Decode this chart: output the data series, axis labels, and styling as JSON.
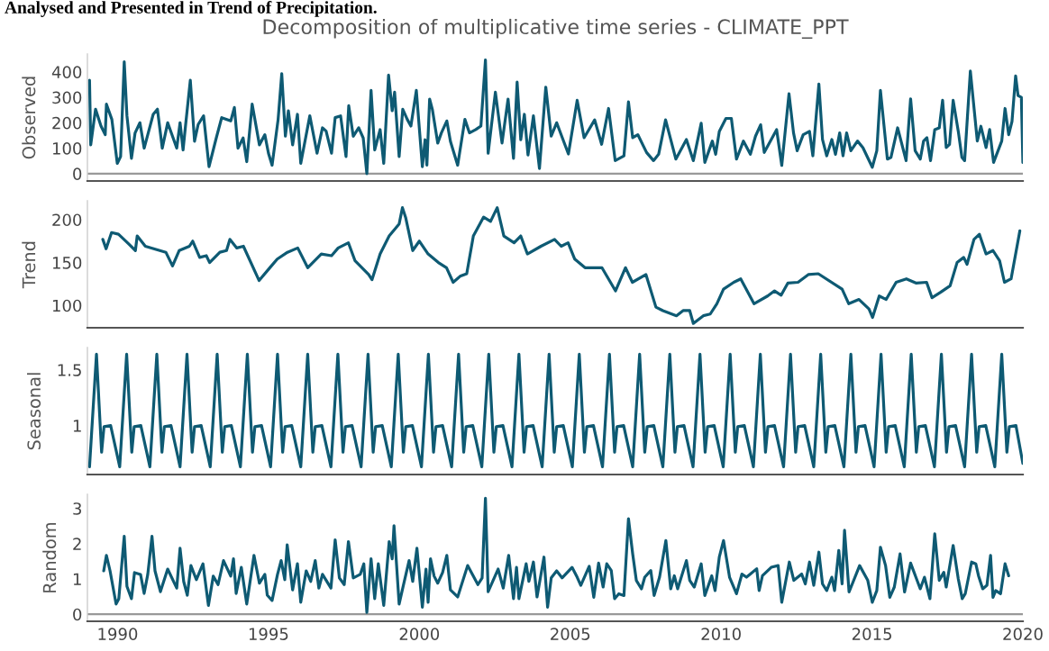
{
  "chart_data": [
    {
      "type": "line",
      "title": "Decomposition of multiplicative time series - CLIMATE_PPT",
      "annotations": [
        "Analysed and Presented in Trend of Precipitation."
      ],
      "ylabel": "Observed",
      "xlim": [
        1989,
        2020
      ],
      "xticks": [
        1990,
        1995,
        2000,
        2005,
        2010,
        2015,
        2020
      ],
      "ylim": [
        -29,
        470
      ],
      "yticks": [
        0,
        100,
        200,
        300,
        400
      ],
      "tick_labels": "y",
      "ref_lines": [
        {
          "axis": "y",
          "value": 0,
          "color": "#999999"
        }
      ],
      "series": [
        {
          "color": "#0e5a73",
          "x": [
            1989.07,
            1989.11,
            1989.27,
            1989.45,
            1989.59,
            1989.63,
            1989.81,
            1989.99,
            1990.1,
            1990.22,
            1990.31,
            1990.46,
            1990.58,
            1990.74,
            1990.88,
            1991.0,
            1991.18,
            1991.32,
            1991.48,
            1991.66,
            1991.96,
            1992.07,
            1992.17,
            1992.25,
            1992.41,
            1992.55,
            1992.67,
            1992.85,
            1993.03,
            1993.27,
            1993.45,
            1993.75,
            1993.87,
            1993.99,
            1994.16,
            1994.28,
            1994.46,
            1994.7,
            1994.88,
            1995.0,
            1995.12,
            1995.32,
            1995.44,
            1995.56,
            1995.66,
            1995.8,
            1995.96,
            1996.07,
            1996.37,
            1996.61,
            1996.79,
            1996.91,
            1997.09,
            1997.21,
            1997.39,
            1997.57,
            1997.66,
            1997.81,
            1997.99,
            1998.14,
            1998.26,
            1998.4,
            1998.52,
            1998.7,
            1998.82,
            1998.98,
            1999.1,
            1999.18,
            1999.33,
            1999.45,
            1999.6,
            1999.72,
            1999.9,
            2000.1,
            2000.19,
            2000.25,
            2000.34,
            2000.43,
            2000.61,
            2000.73,
            2000.91,
            2001.03,
            2001.27,
            2001.51,
            2001.66,
            2001.87,
            2002.04,
            2002.19,
            2002.28,
            2002.52,
            2002.74,
            2002.94,
            2003.12,
            2003.24,
            2003.36,
            2003.48,
            2003.6,
            2003.78,
            2003.98,
            2004.19,
            2004.37,
            2004.55,
            2004.94,
            2005.23,
            2005.46,
            2005.81,
            2006.04,
            2006.27,
            2006.49,
            2006.78,
            2006.93,
            2007.07,
            2007.24,
            2007.53,
            2007.76,
            2007.93,
            2008.16,
            2008.5,
            2008.85,
            2009.08,
            2009.34,
            2009.46,
            2009.71,
            2009.82,
            2009.94,
            2010.16,
            2010.34,
            2010.51,
            2010.74,
            2010.97,
            2011.14,
            2011.31,
            2011.43,
            2011.84,
            2012.01,
            2012.25,
            2012.4,
            2012.52,
            2012.72,
            2012.93,
            2013.04,
            2013.24,
            2013.36,
            2013.5,
            2013.67,
            2013.79,
            2013.93,
            2014.04,
            2014.16,
            2014.3,
            2014.52,
            2014.7,
            2015.01,
            2015.16,
            2015.28,
            2015.51,
            2015.63,
            2015.85,
            2016.13,
            2016.28,
            2016.43,
            2016.6,
            2016.71,
            2016.82,
            2016.94,
            2017.08,
            2017.23,
            2017.34,
            2017.46,
            2017.57,
            2017.69,
            2017.86,
            2017.98,
            2018.07,
            2018.26,
            2018.49,
            2018.61,
            2018.78,
            2018.9,
            2019.03,
            2019.3,
            2019.41,
            2019.53,
            2019.64,
            2019.76,
            2019.84,
            2019.95,
            2020.0
          ],
          "values": [
            367,
            113,
            253,
            187,
            153,
            273,
            213,
            40,
            67,
            440,
            227,
            60,
            160,
            200,
            100,
            153,
            233,
            253,
            100,
            200,
            100,
            200,
            93,
            187,
            367,
            127,
            193,
            227,
            27,
            140,
            220,
            207,
            260,
            100,
            140,
            47,
            273,
            113,
            153,
            80,
            33,
            213,
            393,
            147,
            247,
            113,
            233,
            40,
            227,
            80,
            180,
            167,
            80,
            220,
            227,
            67,
            267,
            147,
            180,
            140,
            0,
            327,
            93,
            173,
            40,
            387,
            247,
            320,
            67,
            253,
            213,
            187,
            327,
            27,
            133,
            33,
            293,
            253,
            120,
            160,
            207,
            127,
            33,
            213,
            160,
            173,
            187,
            447,
            80,
            320,
            120,
            293,
            60,
            360,
            133,
            233,
            73,
            227,
            20,
            340,
            147,
            200,
            77,
            288,
            141,
            211,
            115,
            256,
            51,
            70,
            282,
            141,
            153,
            83,
            51,
            76,
            211,
            57,
            134,
            51,
            198,
            44,
            128,
            76,
            166,
            217,
            217,
            57,
            128,
            76,
            147,
            192,
            83,
            173,
            32,
            314,
            160,
            90,
            153,
            166,
            70,
            352,
            134,
            70,
            134,
            76,
            160,
            70,
            160,
            90,
            128,
            102,
            25,
            90,
            327,
            57,
            64,
            180,
            51,
            294,
            90,
            57,
            128,
            141,
            51,
            173,
            180,
            288,
            102,
            115,
            288,
            166,
            64,
            51,
            403,
            128,
            186,
            102,
            173,
            44,
            128,
            256,
            153,
            205,
            384,
            307,
            300,
            44
          ]
        }
      ]
    },
    {
      "type": "line",
      "ylabel": "Trend",
      "xlim": [
        1989,
        2020
      ],
      "xticks": [
        1990,
        1995,
        2000,
        2005,
        2010,
        2015,
        2020
      ],
      "ylim": [
        74,
        222
      ],
      "yticks": [
        100,
        150,
        200
      ],
      "tick_labels": "y",
      "series": [
        {
          "color": "#0e5a73",
          "x": [
            1989.51,
            1989.62,
            1989.8,
            1990.03,
            1990.36,
            1990.59,
            1990.65,
            1990.92,
            1991.6,
            1991.82,
            1992.04,
            1992.38,
            1992.49,
            1992.72,
            1992.94,
            1993.05,
            1993.39,
            1993.61,
            1993.72,
            1993.95,
            1994.17,
            1994.69,
            1995.07,
            1995.29,
            1995.63,
            1995.97,
            1996.3,
            1996.75,
            1997.09,
            1997.31,
            1997.65,
            1997.87,
            1998.32,
            1998.43,
            1998.7,
            1999.0,
            1999.33,
            1999.44,
            1999.55,
            1999.78,
            2000.0,
            2000.29,
            2000.63,
            2000.9,
            2001.12,
            2001.35,
            2001.57,
            2001.79,
            2002.13,
            2002.36,
            2002.58,
            2002.8,
            2003.14,
            2003.36,
            2003.58,
            2004.03,
            2004.48,
            2004.7,
            2004.93,
            2005.15,
            2005.49,
            2005.71,
            2006.05,
            2006.5,
            2006.83,
            2007.06,
            2007.51,
            2007.84,
            2008.07,
            2008.52,
            2008.74,
            2008.96,
            2009.08,
            2009.41,
            2009.64,
            2009.86,
            2010.08,
            2010.42,
            2010.65,
            2011.09,
            2011.54,
            2011.77,
            2011.99,
            2012.21,
            2012.55,
            2012.89,
            2013.22,
            2014.01,
            2014.23,
            2014.57,
            2014.9,
            2015.02,
            2015.24,
            2015.47,
            2015.8,
            2016.14,
            2016.47,
            2016.81,
            2016.99,
            2017.26,
            2017.59,
            2017.82,
            2018.04,
            2018.15,
            2018.38,
            2018.56,
            2018.78,
            2019.01,
            2019.23,
            2019.39,
            2019.61,
            2019.9
          ],
          "values": [
            177,
            166,
            185,
            183,
            172,
            164,
            181,
            169,
            162,
            146,
            164,
            169,
            175,
            156,
            158,
            150,
            162,
            164,
            177,
            167,
            169,
            129,
            145,
            154,
            162,
            167,
            144,
            160,
            158,
            167,
            173,
            152,
            136,
            130,
            160,
            181,
            195,
            214,
            202,
            164,
            175,
            160,
            150,
            144,
            127,
            134,
            137,
            181,
            203,
            198,
            214,
            181,
            173,
            181,
            160,
            169,
            177,
            169,
            173,
            154,
            144,
            144,
            144,
            117,
            144,
            127,
            136,
            98,
            94,
            88,
            94,
            94,
            79,
            88,
            90,
            102,
            119,
            127,
            131,
            102,
            111,
            117,
            112,
            126,
            127,
            136,
            137,
            119,
            102,
            107,
            96,
            86,
            111,
            107,
            127,
            131,
            126,
            127,
            109,
            115,
            123,
            150,
            156,
            148,
            177,
            183,
            160,
            164,
            152,
            127,
            131,
            187
          ]
        }
      ]
    },
    {
      "type": "line",
      "ylabel": "Seasonal",
      "xlim": [
        1989,
        2020
      ],
      "xticks": [
        1990,
        1995,
        2000,
        2005,
        2010,
        2015,
        2020
      ],
      "ylim": [
        0.56,
        1.7
      ],
      "yticks": [
        1,
        1.5
      ],
      "tick_labels": "y",
      "series": [
        {
          "color": "#0e5a73",
          "x": [
            1989.07,
            1989.3,
            1989.47,
            1989.55,
            1989.77,
            1990.07,
            1990.3,
            1990.47,
            1990.55,
            1990.77,
            1991.07,
            1991.3,
            1991.47,
            1991.55,
            1991.77,
            1992.07,
            1992.3,
            1992.47,
            1992.55,
            1992.77,
            1993.07,
            1993.3,
            1993.47,
            1993.55,
            1993.77,
            1994.07,
            1994.3,
            1994.47,
            1994.55,
            1994.77,
            1995.07,
            1995.3,
            1995.47,
            1995.55,
            1995.77,
            1996.07,
            1996.3,
            1996.47,
            1996.55,
            1996.77,
            1997.07,
            1997.3,
            1997.47,
            1997.55,
            1997.77,
            1998.07,
            1998.3,
            1998.47,
            1998.55,
            1998.77,
            1999.07,
            1999.3,
            1999.47,
            1999.55,
            1999.77,
            2000.07,
            2000.3,
            2000.47,
            2000.55,
            2000.77,
            2001.07,
            2001.3,
            2001.47,
            2001.55,
            2001.77,
            2002.07,
            2002.3,
            2002.47,
            2002.55,
            2002.77,
            2003.07,
            2003.3,
            2003.47,
            2003.55,
            2003.77,
            2004.07,
            2004.3,
            2004.47,
            2004.55,
            2004.77,
            2005.07,
            2005.3,
            2005.47,
            2005.55,
            2005.77,
            2006.07,
            2006.3,
            2006.47,
            2006.55,
            2006.77,
            2007.07,
            2007.3,
            2007.47,
            2007.55,
            2007.77,
            2008.07,
            2008.3,
            2008.47,
            2008.55,
            2008.77,
            2009.07,
            2009.3,
            2009.47,
            2009.55,
            2009.77,
            2010.07,
            2010.3,
            2010.47,
            2010.55,
            2010.77,
            2011.07,
            2011.3,
            2011.47,
            2011.55,
            2011.77,
            2012.07,
            2012.3,
            2012.47,
            2012.55,
            2012.77,
            2013.07,
            2013.3,
            2013.47,
            2013.55,
            2013.77,
            2014.07,
            2014.3,
            2014.47,
            2014.55,
            2014.77,
            2015.07,
            2015.3,
            2015.47,
            2015.55,
            2015.77,
            2016.07,
            2016.3,
            2016.47,
            2016.55,
            2016.77,
            2017.07,
            2017.3,
            2017.47,
            2017.55,
            2017.77,
            2018.07,
            2018.3,
            2018.47,
            2018.55,
            2018.77,
            2019.07,
            2019.3,
            2019.47,
            2019.55,
            2019.77,
            2020.0
          ],
          "values": [
            0.63,
            1.64,
            0.76,
            0.99,
            1.0,
            0.63,
            1.64,
            0.76,
            0.99,
            1.0,
            0.63,
            1.64,
            0.76,
            0.99,
            1.0,
            0.63,
            1.64,
            0.76,
            0.99,
            1.0,
            0.63,
            1.64,
            0.76,
            0.99,
            1.0,
            0.63,
            1.64,
            0.76,
            0.99,
            1.0,
            0.63,
            1.64,
            0.76,
            0.99,
            1.0,
            0.63,
            1.64,
            0.76,
            0.99,
            1.0,
            0.63,
            1.64,
            0.76,
            0.99,
            1.0,
            0.63,
            1.64,
            0.76,
            0.99,
            1.0,
            0.63,
            1.64,
            0.76,
            0.99,
            1.0,
            0.63,
            1.64,
            0.76,
            0.99,
            1.0,
            0.63,
            1.64,
            0.76,
            0.99,
            1.0,
            0.63,
            1.64,
            0.76,
            0.99,
            1.0,
            0.63,
            1.64,
            0.76,
            0.99,
            1.0,
            0.63,
            1.64,
            0.76,
            0.99,
            1.0,
            0.63,
            1.64,
            0.76,
            0.99,
            1.0,
            0.63,
            1.64,
            0.76,
            0.99,
            1.0,
            0.63,
            1.64,
            0.76,
            0.99,
            1.0,
            0.63,
            1.64,
            0.76,
            0.99,
            1.0,
            0.63,
            1.64,
            0.76,
            0.99,
            1.0,
            0.63,
            1.64,
            0.76,
            0.99,
            1.0,
            0.63,
            1.64,
            0.76,
            0.99,
            1.0,
            0.63,
            1.64,
            0.76,
            0.99,
            1.0,
            0.63,
            1.64,
            0.76,
            0.99,
            1.0,
            0.63,
            1.64,
            0.76,
            0.99,
            1.0,
            0.63,
            1.64,
            0.76,
            0.99,
            1.0,
            0.63,
            1.64,
            0.76,
            0.99,
            1.0,
            0.63,
            1.64,
            0.76,
            0.99,
            1.0,
            0.63,
            1.64,
            0.76,
            0.99,
            1.0,
            0.63,
            1.64,
            0.76,
            0.99,
            1.0,
            0.66
          ]
        }
      ]
    },
    {
      "type": "line",
      "ylabel": "Random",
      "xlim": [
        1989,
        2020
      ],
      "xticks": [
        1990,
        1995,
        2000,
        2005,
        2010,
        2015,
        2020
      ],
      "ylim": [
        -0.2,
        3.4
      ],
      "yticks": [
        0,
        1,
        2,
        3
      ],
      "ref_lines": [
        {
          "axis": "y",
          "value": 0,
          "color": "#999999"
        }
      ],
      "series": [
        {
          "color": "#0e5a73",
          "x": [
            1989.54,
            1989.63,
            1989.75,
            1989.95,
            1990.04,
            1990.22,
            1990.31,
            1990.46,
            1990.56,
            1990.76,
            1990.88,
            1991.0,
            1991.14,
            1991.24,
            1991.42,
            1991.66,
            1991.96,
            1992.07,
            1992.19,
            1992.31,
            1992.43,
            1992.61,
            1992.83,
            1993.01,
            1993.17,
            1993.33,
            1993.51,
            1993.75,
            1993.84,
            1993.93,
            1994.1,
            1994.28,
            1994.52,
            1994.7,
            1994.88,
            1994.96,
            1995.12,
            1995.3,
            1995.42,
            1995.54,
            1995.62,
            1995.8,
            1995.96,
            1996.07,
            1996.25,
            1996.4,
            1996.55,
            1996.67,
            1996.79,
            1997.07,
            1997.21,
            1997.35,
            1997.51,
            1997.65,
            1997.81,
            1998.04,
            1998.16,
            1998.26,
            1998.4,
            1998.52,
            1998.64,
            1998.82,
            1999.0,
            1999.1,
            1999.16,
            1999.33,
            1999.45,
            1999.66,
            1999.78,
            1999.92,
            2000.1,
            2000.22,
            2000.29,
            2000.37,
            2000.49,
            2000.61,
            2000.77,
            2000.91,
            2001.03,
            2001.27,
            2001.6,
            2001.94,
            2002.08,
            2002.19,
            2002.28,
            2002.61,
            2002.78,
            2002.96,
            2003.12,
            2003.22,
            2003.3,
            2003.54,
            2003.63,
            2003.78,
            2003.9,
            2004.13,
            2004.25,
            2004.37,
            2004.55,
            2004.73,
            2005.06,
            2005.23,
            2005.35,
            2005.63,
            2005.78,
            2005.94,
            2006.09,
            2006.21,
            2006.36,
            2006.47,
            2006.61,
            2006.78,
            2006.93,
            2007.07,
            2007.19,
            2007.36,
            2007.47,
            2007.67,
            2007.78,
            2007.96,
            2008.17,
            2008.33,
            2008.45,
            2008.56,
            2008.85,
            2008.96,
            2009.11,
            2009.34,
            2009.46,
            2009.69,
            2009.8,
            2009.94,
            2010.08,
            2010.28,
            2010.51,
            2010.69,
            2010.84,
            2010.97,
            2011.18,
            2011.26,
            2011.37,
            2011.66,
            2011.89,
            2012.01,
            2012.26,
            2012.41,
            2012.67,
            2012.79,
            2012.93,
            2013.07,
            2013.24,
            2013.36,
            2013.5,
            2013.67,
            2013.76,
            2013.9,
            2014.01,
            2014.09,
            2014.24,
            2014.59,
            2014.86,
            2015.01,
            2015.16,
            2015.28,
            2015.45,
            2015.59,
            2015.74,
            2015.93,
            2016.08,
            2016.28,
            2016.6,
            2016.74,
            2016.92,
            2017.08,
            2017.23,
            2017.38,
            2017.46,
            2017.69,
            2017.86,
            2017.99,
            2018.09,
            2018.3,
            2018.44,
            2018.53,
            2018.67,
            2018.81,
            2018.93,
            2019.01,
            2019.1,
            2019.26,
            2019.41,
            2019.53
          ],
          "values": [
            1.23,
            1.67,
            1.23,
            0.29,
            0.44,
            2.21,
            0.79,
            0.44,
            1.18,
            1.13,
            0.59,
            1.13,
            2.21,
            1.23,
            0.64,
            1.28,
            0.74,
            1.87,
            0.93,
            0.54,
            1.38,
            0.98,
            1.43,
            0.25,
            1.08,
            0.84,
            1.52,
            1.08,
            1.57,
            0.59,
            1.33,
            0.29,
            1.67,
            0.88,
            1.13,
            0.54,
            0.39,
            1.13,
            1.52,
            0.98,
            1.97,
            0.69,
            1.43,
            0.34,
            1.23,
            0.93,
            1.52,
            0.74,
            1.13,
            0.74,
            2.11,
            1.03,
            0.84,
            2.06,
            1.03,
            1.13,
            1.43,
            0.05,
            1.57,
            0.44,
            1.43,
            0.25,
            2.06,
            1.57,
            2.51,
            0.29,
            0.74,
            1.52,
            0.93,
            1.87,
            0.2,
            1.28,
            0.34,
            1.57,
            1.08,
            0.88,
            1.18,
            1.67,
            0.69,
            0.49,
            1.38,
            0.84,
            1.03,
            3.29,
            0.64,
            1.28,
            0.74,
            1.67,
            0.44,
            1.33,
            0.44,
            1.43,
            0.93,
            1.48,
            0.49,
            1.62,
            0.2,
            1.03,
            1.23,
            1.03,
            1.33,
            1.05,
            0.82,
            1.36,
            0.48,
            1.45,
            0.77,
            1.43,
            1.24,
            0.44,
            0.58,
            0.53,
            2.71,
            1.71,
            0.96,
            0.72,
            1.05,
            1.24,
            0.53,
            1.05,
            2.09,
            0.72,
            1.09,
            0.72,
            1.52,
            0.96,
            0.77,
            1.43,
            0.53,
            1.09,
            0.67,
            1.62,
            2.09,
            1.05,
            0.58,
            1.14,
            1.05,
            1.14,
            1.29,
            0.67,
            1.09,
            1.33,
            1.38,
            0.34,
            1.48,
            0.96,
            1.14,
            0.86,
            1.48,
            0.82,
            1.76,
            0.86,
            0.67,
            1.05,
            0.67,
            1.81,
            0.86,
            2.38,
            0.63,
            1.38,
            0.96,
            0.34,
            0.67,
            1.9,
            1.38,
            0.48,
            0.77,
            1.71,
            0.63,
            1.45,
            0.72,
            1.05,
            0.44,
            2.28,
            0.96,
            1.19,
            0.77,
            1.95,
            1.0,
            0.44,
            0.58,
            1.48,
            1.43,
            1.09,
            0.72,
            0.82,
            1.67,
            0.48,
            0.67,
            0.58,
            1.43,
            1.09
          ]
        }
      ]
    }
  ]
}
